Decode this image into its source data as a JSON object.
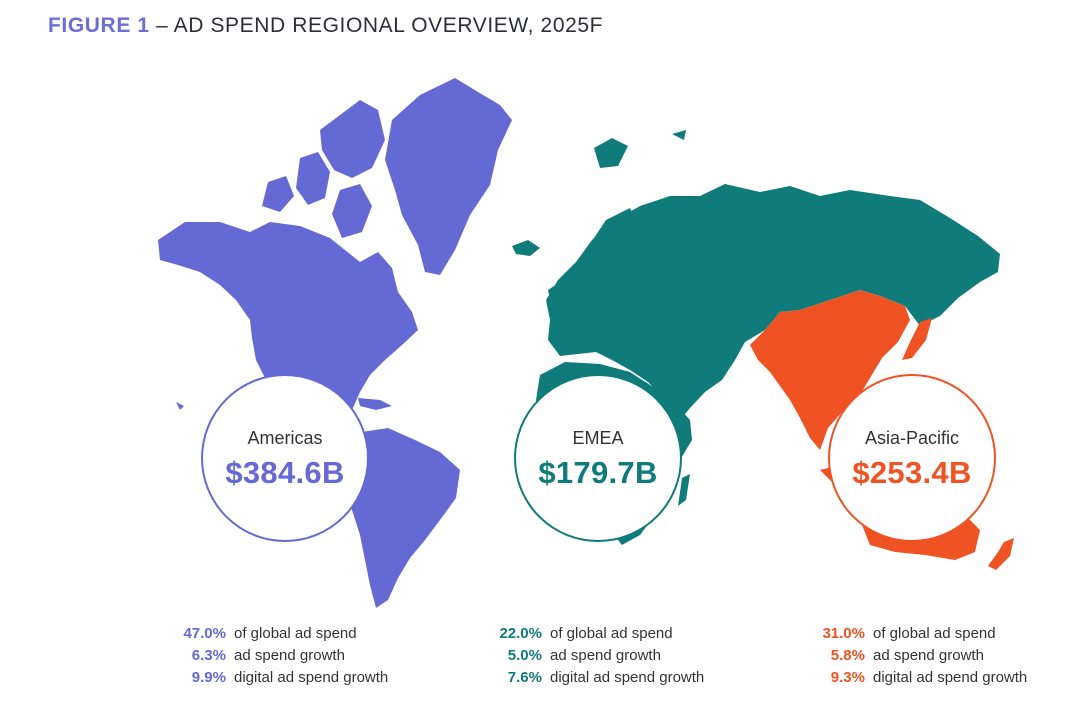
{
  "title": {
    "figure_label": "FIGURE 1",
    "text": " – AD SPEND REGIONAL OVERVIEW, 2025F"
  },
  "colors": {
    "americas": "#6469d4",
    "emea": "#0f7b7b",
    "apac": "#f05323"
  },
  "regions": [
    {
      "name": "Americas",
      "amount": "$384.6B",
      "stats": [
        {
          "value": "47.0%",
          "label": "of global ad spend"
        },
        {
          "value": "6.3%",
          "label": "ad spend growth"
        },
        {
          "value": "9.9%",
          "label": "digital ad spend growth"
        }
      ]
    },
    {
      "name": "EMEA",
      "amount": "$179.7B",
      "stats": [
        {
          "value": "22.0%",
          "label": "of global ad spend"
        },
        {
          "value": "5.0%",
          "label": "ad spend growth"
        },
        {
          "value": "7.6%",
          "label": "digital ad spend growth"
        }
      ]
    },
    {
      "name": "Asia-Pacific",
      "amount": "$253.4B",
      "stats": [
        {
          "value": "31.0%",
          "label": "of global ad spend"
        },
        {
          "value": "5.8%",
          "label": "ad spend growth"
        },
        {
          "value": "9.3%",
          "label": "digital ad spend growth"
        }
      ]
    }
  ]
}
